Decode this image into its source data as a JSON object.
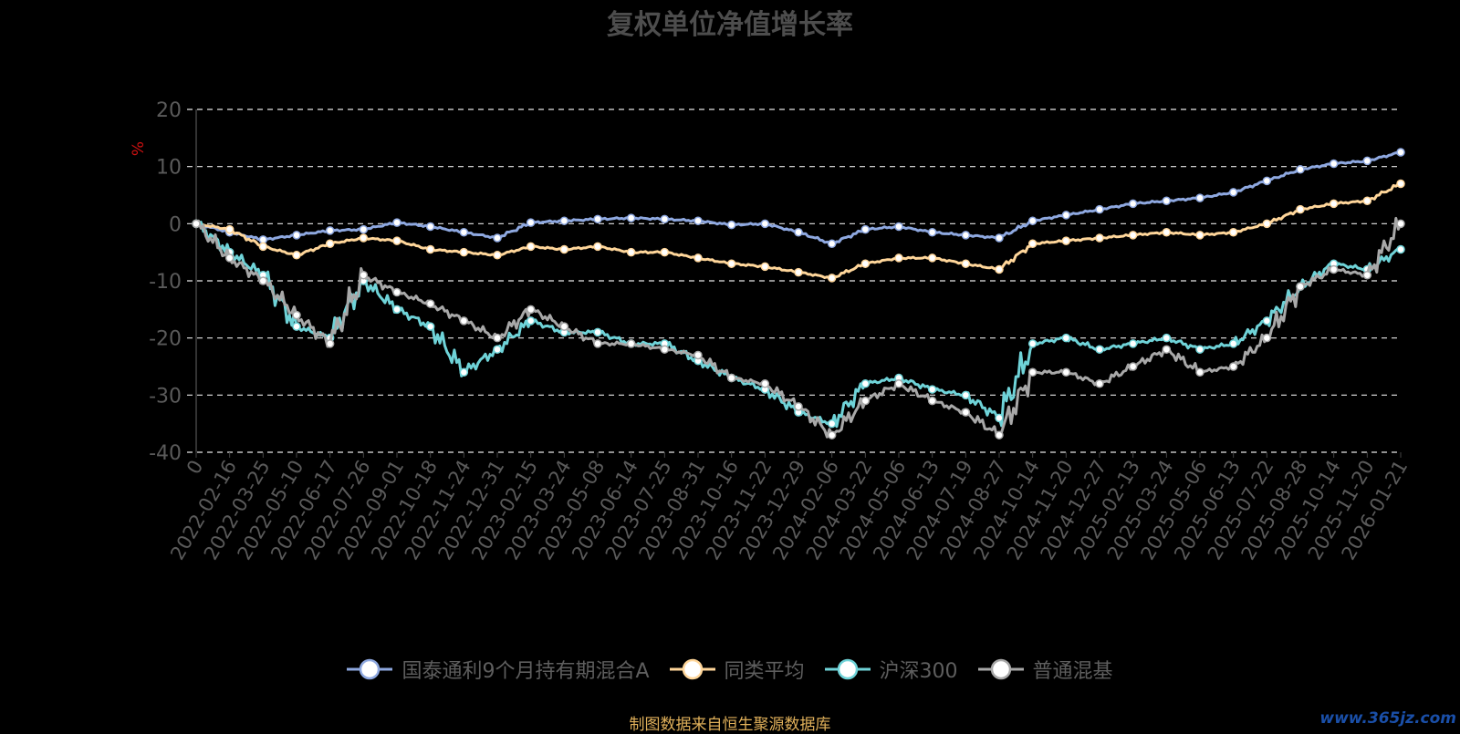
{
  "title": "复权单位净值增长率",
  "source_note": "制图数据来自恒生聚源数据库",
  "watermark": "www.365jz.com",
  "colors": {
    "background": "#000000",
    "fund": "#8ea8e0",
    "peer": "#ffd69a",
    "hs300": "#6fd3d8",
    "mixed": "#a8a8a8",
    "axis_text": "#5a5a5a",
    "unit_label": "#cc1111",
    "grid": "#e6e6e6"
  },
  "chart_data": {
    "type": "line",
    "ylabel": "%",
    "ylim": [
      -40,
      20
    ],
    "yticks": [
      20,
      10,
      0,
      -10,
      -20,
      -30,
      -40
    ],
    "grid": true,
    "legend_position": "bottom",
    "x": [
      "0",
      "2022-02-16",
      "2022-03-25",
      "2022-05-10",
      "2022-06-17",
      "2022-07-26",
      "2022-09-01",
      "2022-10-18",
      "2022-11-24",
      "2022-12-31",
      "2023-02-15",
      "2023-03-24",
      "2023-05-08",
      "2023-06-14",
      "2023-07-25",
      "2023-08-31",
      "2023-10-16",
      "2023-11-22",
      "2023-12-29",
      "2024-02-06",
      "2024-03-22",
      "2024-05-06",
      "2024-06-13",
      "2024-07-19",
      "2024-08-27",
      "2024-10-14",
      "2024-11-20",
      "2024-12-27",
      "2025-02-13",
      "2025-03-24",
      "2025-05-06",
      "2025-06-13",
      "2025-07-22",
      "2025-08-28",
      "2025-10-14",
      "2025-11-20",
      "2026-01-21"
    ],
    "series": [
      {
        "name": "国泰通利9个月持有期混合A",
        "color": "#8ea8e0",
        "values": [
          0,
          -1.5,
          -2.8,
          -2,
          -1.2,
          -1,
          0.2,
          -0.5,
          -1.5,
          -2.5,
          0.2,
          0.5,
          0.8,
          1,
          0.8,
          0.5,
          -0.2,
          0,
          -1.5,
          -3.5,
          -1,
          -0.5,
          -1.5,
          -2,
          -2.5,
          0.5,
          1.5,
          2.5,
          3.5,
          4,
          4.5,
          5.5,
          7.5,
          9.5,
          10.5,
          11,
          12.5
        ]
      },
      {
        "name": "同类平均",
        "color": "#ffd69a",
        "values": [
          0,
          -1,
          -4,
          -5.5,
          -3.5,
          -2.5,
          -3,
          -4.5,
          -5,
          -5.5,
          -4,
          -4.5,
          -4,
          -5,
          -5,
          -6,
          -7,
          -7.5,
          -8.5,
          -9.5,
          -7,
          -6,
          -6,
          -7,
          -8,
          -3.5,
          -3,
          -2.5,
          -2,
          -1.5,
          -2,
          -1.5,
          0,
          2.5,
          3.5,
          4,
          7
        ]
      },
      {
        "name": "沪深300",
        "color": "#6fd3d8",
        "values": [
          0,
          -5,
          -9,
          -18,
          -20,
          -10,
          -15,
          -18,
          -26,
          -22,
          -17,
          -19,
          -19,
          -21,
          -21,
          -24,
          -27,
          -29,
          -33,
          -35,
          -28,
          -27,
          -29,
          -30,
          -34,
          -21,
          -20,
          -22,
          -21,
          -20,
          -22,
          -21,
          -17,
          -11,
          -7,
          -8,
          -4.5
        ]
      },
      {
        "name": "普通混基",
        "color": "#a8a8a8",
        "values": [
          0,
          -6,
          -10,
          -16,
          -21,
          -9,
          -12,
          -14,
          -17,
          -20,
          -15,
          -18,
          -21,
          -21,
          -22,
          -23,
          -27,
          -28,
          -32,
          -37,
          -31,
          -28,
          -31,
          -33,
          -37,
          -26,
          -26,
          -28,
          -25,
          -22,
          -26,
          -25,
          -20,
          -11,
          -8,
          -9,
          0
        ]
      }
    ]
  }
}
